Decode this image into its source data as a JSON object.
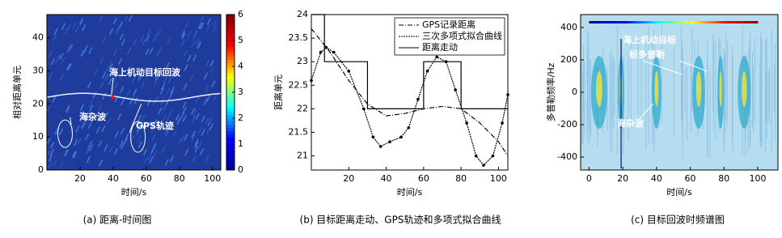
{
  "chart_data": [
    {
      "type": "heatmap",
      "caption": "(a) 距离-时间图",
      "xlabel": "时间/s",
      "ylabel": "相对距离单元",
      "xlim": [
        0,
        105
      ],
      "ylim": [
        0,
        47
      ],
      "xticks": [
        20,
        40,
        60,
        80,
        100
      ],
      "yticks": [
        0,
        10,
        20,
        30,
        40
      ],
      "colorbar": {
        "lim": [
          0,
          6
        ],
        "ticks": [
          0,
          1,
          2,
          3,
          4,
          5,
          6
        ]
      },
      "annotations": [
        "海上机动目标回波",
        "海杂波",
        "GPS轨迹"
      ]
    },
    {
      "type": "line",
      "caption": "(b) 目标距离走动、GPS轨迹和多项式拟合曲线",
      "xlabel": "时间/s",
      "ylabel": "距离单元",
      "xlim": [
        0,
        105
      ],
      "ylim": [
        20.7,
        24
      ],
      "xticks": [
        20,
        40,
        60,
        80,
        100
      ],
      "yticks": [
        21,
        21.5,
        22,
        22.5,
        23,
        23.5,
        24
      ],
      "legend": "upper right",
      "series": [
        {
          "name": "GPS记录距离",
          "color": "#000000",
          "style": "dashdot",
          "x": [
            0,
            10,
            20,
            30,
            40,
            50,
            60,
            70,
            80,
            90,
            100,
            105
          ],
          "values": [
            23.7,
            23.2,
            22.6,
            22.1,
            21.85,
            21.9,
            22.0,
            22.05,
            22.0,
            21.7,
            21.3,
            21.0
          ]
        },
        {
          "name": "三次多项式拟合曲线",
          "color": "#000000",
          "style": "markers",
          "x": [
            0,
            5,
            8,
            12,
            20,
            28,
            33,
            37,
            42,
            48,
            52,
            57,
            62,
            67,
            72,
            77,
            83,
            88,
            92,
            97,
            102,
            105
          ],
          "values": [
            22.6,
            23.2,
            23.3,
            23.2,
            22.8,
            22.0,
            21.4,
            21.2,
            21.3,
            21.4,
            21.6,
            22.2,
            22.8,
            23.1,
            23.0,
            22.4,
            21.7,
            21.0,
            20.8,
            21.0,
            21.7,
            22.3
          ]
        },
        {
          "name": "距离走动",
          "color": "#000000",
          "style": "solid",
          "x": [
            0,
            7,
            7,
            30,
            30,
            60,
            60,
            80,
            80,
            105
          ],
          "values": [
            24,
            24,
            23,
            23,
            22,
            22,
            23,
            23,
            22,
            22
          ]
        }
      ]
    },
    {
      "type": "spectrogram",
      "caption": "(c) 目标回波时频谱图",
      "xlabel": "时间/s",
      "ylabel": "多普勒频率/Hz",
      "xlim": [
        -5,
        112
      ],
      "ylim": [
        -480,
        480
      ],
      "xticks": [
        0,
        20,
        40,
        60,
        80,
        100
      ],
      "yticks": [
        -400,
        -200,
        0,
        200,
        400
      ],
      "annotations": [
        "海上机动目标",
        "标多普勒",
        "海杂波"
      ]
    }
  ]
}
